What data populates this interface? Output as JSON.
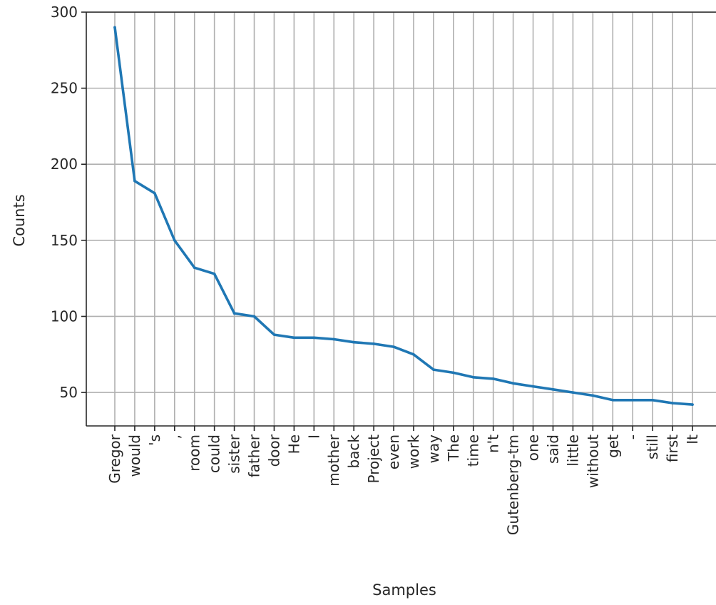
{
  "chart_data": {
    "type": "line",
    "xlabel": "Samples",
    "ylabel": "Counts",
    "ylim": [
      28,
      300
    ],
    "yticks": [
      50,
      100,
      150,
      200,
      250,
      300
    ],
    "grid": true,
    "series_color": "#1f77b4",
    "categories": [
      "Gregor",
      "would",
      "'s",
      ",",
      "room",
      "could",
      "sister",
      "father",
      "door",
      "He",
      "I",
      "mother",
      "back",
      "Project",
      "even",
      "work",
      "way",
      "The",
      "time",
      "n't",
      "Gutenberg-tm",
      "one",
      "said",
      "little",
      "without",
      "get",
      "-",
      "still",
      "first",
      "It"
    ],
    "values": [
      290,
      189,
      181,
      150,
      132,
      128,
      102,
      100,
      88,
      86,
      86,
      85,
      83,
      82,
      80,
      75,
      65,
      63,
      60,
      59,
      56,
      54,
      52,
      50,
      48,
      45,
      45,
      45,
      43,
      42
    ]
  }
}
